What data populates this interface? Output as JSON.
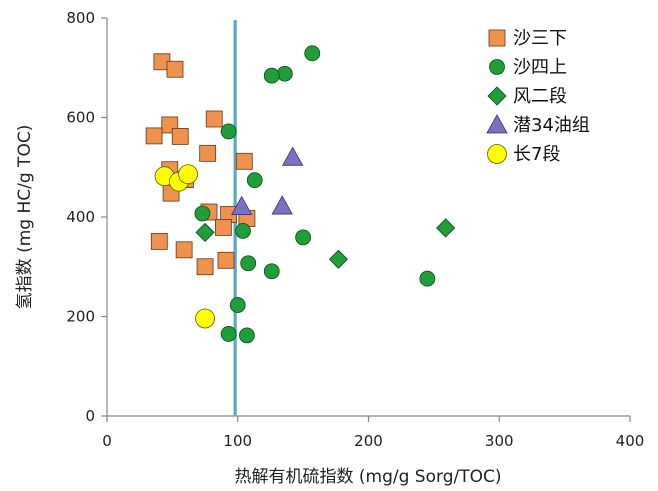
{
  "chart_data": {
    "type": "scatter",
    "title": "",
    "xlabel": "热解有机硫指数 (mg/g Sorg/TOC)",
    "ylabel": "氢指数 (mg HC/g TOC)",
    "xlim": [
      0,
      400
    ],
    "ylim": [
      0,
      800
    ],
    "x_ticks": [
      "0",
      "100",
      "200",
      "300",
      "400"
    ],
    "y_ticks": [
      "0",
      "200",
      "400",
      "600",
      "800"
    ],
    "grid": false,
    "legend_position": "top-right",
    "reference_line": {
      "x": 98,
      "color": "#5aa8c8"
    },
    "series": [
      {
        "name": "沙三下",
        "marker": "square",
        "color": "#f0924e",
        "points": [
          [
            42,
            712
          ],
          [
            52,
            697
          ],
          [
            48,
            585
          ],
          [
            36,
            563
          ],
          [
            56,
            562
          ],
          [
            82,
            597
          ],
          [
            77,
            528
          ],
          [
            105,
            512
          ],
          [
            48,
            495
          ],
          [
            60,
            475
          ],
          [
            49,
            448
          ],
          [
            78,
            410
          ],
          [
            93,
            405
          ],
          [
            107,
            397
          ],
          [
            89,
            379
          ],
          [
            40,
            351
          ],
          [
            59,
            334
          ],
          [
            75,
            300
          ],
          [
            91,
            313
          ]
        ]
      },
      {
        "name": "沙四上",
        "marker": "circle",
        "color": "#1f9e3a",
        "points": [
          [
            157,
            729
          ],
          [
            136,
            688
          ],
          [
            126,
            684
          ],
          [
            93,
            572
          ],
          [
            113,
            474
          ],
          [
            73,
            407
          ],
          [
            104,
            372
          ],
          [
            150,
            359
          ],
          [
            108,
            307
          ],
          [
            126,
            291
          ],
          [
            245,
            276
          ],
          [
            100,
            223
          ],
          [
            93,
            165
          ],
          [
            107,
            162
          ]
        ]
      },
      {
        "name": "风二段",
        "marker": "diamond",
        "color": "#1f9e3a",
        "points": [
          [
            75,
            369
          ],
          [
            177,
            315
          ],
          [
            259,
            378
          ]
        ]
      },
      {
        "name": "潜34油组",
        "marker": "triangle",
        "color": "#7a6fc0",
        "points": [
          [
            142,
            520
          ],
          [
            103,
            421
          ],
          [
            134,
            422
          ]
        ]
      },
      {
        "name": "长7段",
        "marker": "circle",
        "color": "#ffff00",
        "points": [
          [
            44,
            482
          ],
          [
            55,
            471
          ],
          [
            62,
            486
          ],
          [
            75,
            196
          ]
        ]
      }
    ]
  }
}
